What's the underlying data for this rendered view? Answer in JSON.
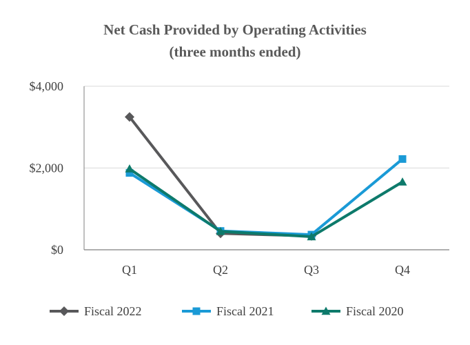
{
  "chart_data": {
    "type": "line",
    "title": "Net Cash Provided by Operating Activities",
    "subtitle": "(three months ended)",
    "categories": [
      "Q1",
      "Q2",
      "Q3",
      "Q4"
    ],
    "ylim": [
      0,
      4000
    ],
    "yticks": [
      0,
      2000,
      4000
    ],
    "ytick_labels": [
      "$0",
      "$2,000",
      "$4,000"
    ],
    "grid": true,
    "legend_position": "bottom",
    "series": [
      {
        "name": "Fiscal 2022",
        "values": [
          3250,
          400,
          340,
          null
        ],
        "color": "#58585a",
        "marker": "diamond"
      },
      {
        "name": "Fiscal 2021",
        "values": [
          1880,
          460,
          370,
          2220
        ],
        "color": "#1a9ad6",
        "marker": "square"
      },
      {
        "name": "Fiscal 2020",
        "values": [
          1980,
          450,
          320,
          1660
        ],
        "color": "#0d7a6b",
        "marker": "triangle"
      }
    ]
  }
}
